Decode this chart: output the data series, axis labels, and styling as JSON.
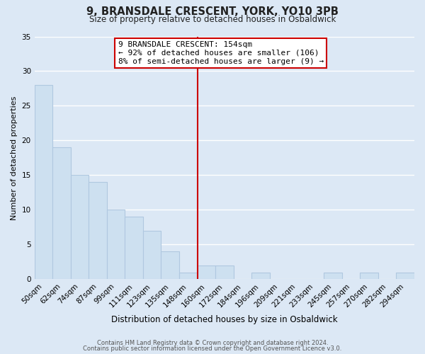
{
  "title": "9, BRANSDALE CRESCENT, YORK, YO10 3PB",
  "subtitle": "Size of property relative to detached houses in Osbaldwick",
  "xlabel": "Distribution of detached houses by size in Osbaldwick",
  "ylabel": "Number of detached properties",
  "footer_line1": "Contains HM Land Registry data © Crown copyright and database right 2024.",
  "footer_line2": "Contains public sector information licensed under the Open Government Licence v3.0.",
  "bin_labels": [
    "50sqm",
    "62sqm",
    "74sqm",
    "87sqm",
    "99sqm",
    "111sqm",
    "123sqm",
    "135sqm",
    "148sqm",
    "160sqm",
    "172sqm",
    "184sqm",
    "196sqm",
    "209sqm",
    "221sqm",
    "233sqm",
    "245sqm",
    "257sqm",
    "270sqm",
    "282sqm",
    "294sqm"
  ],
  "bar_heights": [
    28,
    19,
    15,
    14,
    10,
    9,
    7,
    4,
    1,
    2,
    2,
    0,
    1,
    0,
    0,
    0,
    1,
    0,
    1,
    0,
    1
  ],
  "bar_color": "#cde0f0",
  "bar_edge_color": "#b0c8e0",
  "vline_x": 8.5,
  "vline_color": "#cc0000",
  "annotation_title": "9 BRANSDALE CRESCENT: 154sqm",
  "annotation_line1": "← 92% of detached houses are smaller (106)",
  "annotation_line2": "8% of semi-detached houses are larger (9) →",
  "annotation_box_facecolor": "#ffffff",
  "annotation_box_edgecolor": "#cc0000",
  "ylim": [
    0,
    35
  ],
  "yticks": [
    0,
    5,
    10,
    15,
    20,
    25,
    30,
    35
  ],
  "background_color": "#dce8f5",
  "grid_color": "#ffffff",
  "title_fontsize": 10.5,
  "subtitle_fontsize": 8.5,
  "xlabel_fontsize": 8.5,
  "ylabel_fontsize": 8,
  "tick_fontsize": 7.5,
  "annotation_fontsize": 8,
  "footer_fontsize": 6
}
